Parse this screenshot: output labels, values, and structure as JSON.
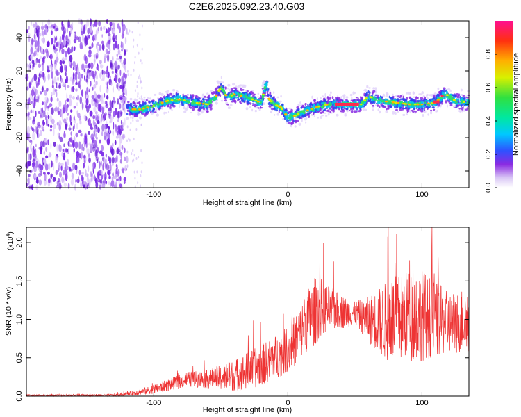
{
  "title": "C2E6.2025.092.23.40.G03",
  "chart_data": [
    {
      "type": "heatmap",
      "xlabel": "Height of straight line (km)",
      "ylabel": "Frequency (Hz)",
      "xlim": [
        -195,
        135
      ],
      "ylim": [
        -50,
        50
      ],
      "xticks": [
        -100,
        0,
        100
      ],
      "yticks": [
        -40,
        -20,
        0,
        20,
        40
      ],
      "grid": false,
      "colorbar": {
        "label": "Normalized spectral amplitude",
        "range": [
          0,
          1
        ],
        "ticks": [
          0.0,
          0.2,
          0.4,
          0.6,
          0.8
        ]
      },
      "noise_region_xlim": [
        -195,
        -120
      ],
      "ridge": {
        "x": [
          -120,
          -110,
          -100,
          -90,
          -80,
          -70,
          -60,
          -55,
          -50,
          -45,
          -40,
          -30,
          -20,
          -16,
          -14,
          -10,
          -5,
          0,
          5,
          10,
          20,
          25,
          30,
          40,
          55,
          58,
          60,
          65,
          70,
          80,
          90,
          100,
          110,
          115,
          118,
          125,
          135
        ],
        "y": [
          -3,
          -3,
          -1,
          2,
          3,
          1,
          0,
          3,
          10,
          4,
          6,
          4,
          1,
          13,
          3,
          0,
          -2,
          -8,
          -7,
          -5,
          -2,
          -1,
          0,
          0,
          0,
          3,
          5,
          3,
          2,
          1,
          0,
          0,
          1,
          5,
          6,
          2,
          1
        ]
      }
    },
    {
      "type": "line",
      "xlabel": "Height of straight line (km)",
      "ylabel": "SNR (10 * v/v)",
      "y_multiplier_label": "(x10",
      "y_multiplier_exp": "4",
      "xlim": [
        -195,
        135
      ],
      "ylim": [
        0,
        2.2
      ],
      "xticks": [
        -100,
        0,
        100
      ],
      "yticks": [
        0.0,
        0.5,
        1.0,
        1.5,
        2.0
      ],
      "ytick_labels": [
        "0.0",
        "0.5",
        "1.0",
        "1.5",
        "2.0"
      ],
      "grid": false,
      "color": "#ee3333",
      "envelope": {
        "x": [
          -195,
          -160,
          -130,
          -115,
          -100,
          -90,
          -75,
          -60,
          -45,
          -35,
          -25,
          -15,
          -5,
          0,
          5,
          10,
          15,
          20,
          25,
          30,
          40,
          50,
          60,
          70,
          80,
          90,
          100,
          110,
          120,
          135
        ],
        "y": [
          0.01,
          0.01,
          0.01,
          0.04,
          0.09,
          0.14,
          0.22,
          0.22,
          0.25,
          0.3,
          0.36,
          0.45,
          0.55,
          0.62,
          0.72,
          0.86,
          1.0,
          1.1,
          1.16,
          1.14,
          1.1,
          1.08,
          1.0,
          0.97,
          1.0,
          1.05,
          1.06,
          1.0,
          0.95,
          1.0
        ]
      },
      "spread": {
        "x": [
          -195,
          -120,
          -100,
          -60,
          -30,
          0,
          20,
          30,
          50,
          60,
          75,
          90,
          100,
          110,
          120,
          135
        ],
        "y": [
          0.01,
          0.02,
          0.06,
          0.12,
          0.25,
          0.3,
          0.45,
          0.3,
          0.15,
          0.3,
          0.55,
          0.6,
          0.6,
          0.5,
          0.4,
          0.45
        ]
      }
    }
  ]
}
